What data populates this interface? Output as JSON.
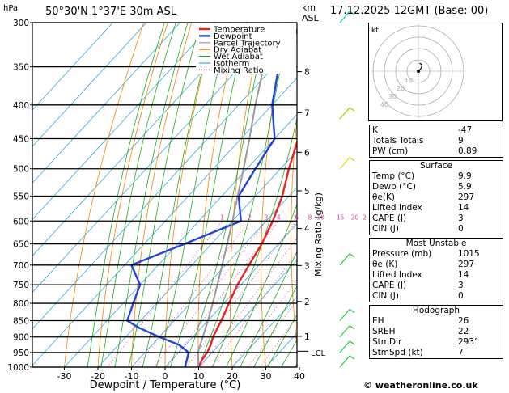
{
  "chart_data": {
    "type": "line",
    "title": "50°30'N  1°37'E  30m  ASL",
    "date": "17.12.2025  12GMT  (Base: 00)",
    "xlabel": "Dewpoint / Temperature (°C)",
    "ylabel": "hPa",
    "km_label": "km\nASL",
    "km_title": "km",
    "asl_title": "ASL",
    "mixing_axis_label": "Mixing Ratio (g/kg)",
    "xlim": [
      -40,
      40
    ],
    "ylim": [
      1000,
      300
    ],
    "x_ticks": [
      -30,
      -20,
      -10,
      0,
      10,
      20,
      30,
      40
    ],
    "pressure_levels": [
      300,
      350,
      400,
      450,
      500,
      550,
      600,
      650,
      700,
      750,
      800,
      850,
      900,
      950,
      1000
    ],
    "km_ticks": [
      {
        "km": "1",
        "p": 898
      },
      {
        "km": "2",
        "p": 795
      },
      {
        "km": "3",
        "p": 701
      },
      {
        "km": "4",
        "p": 616
      },
      {
        "km": "5",
        "p": 540
      },
      {
        "km": "6",
        "p": 472
      },
      {
        "km": "7",
        "p": 411
      },
      {
        "km": "8",
        "p": 356
      }
    ],
    "lcl_label": "LCL",
    "lcl_p": 946,
    "mixing_ratio_labels": [
      "1",
      "2",
      "3",
      "4",
      "6",
      "8",
      "10",
      "15",
      "20",
      "25"
    ],
    "mixing_ratio_values": [
      1,
      2,
      3,
      4,
      6,
      8,
      10,
      15,
      20,
      25
    ],
    "legend": [
      {
        "name": "Temperature",
        "color": "#ee2222",
        "style": "solid"
      },
      {
        "name": "Dewpoint",
        "color": "#2244dd",
        "style": "solid"
      },
      {
        "name": "Parcel Trajectory",
        "color": "#999999",
        "style": "solid"
      },
      {
        "name": "Dry Adiabat",
        "color": "#ee8800",
        "style": "solid"
      },
      {
        "name": "Wet Adiabat",
        "color": "#22aa22",
        "style": "solid"
      },
      {
        "name": "Isotherm",
        "color": "#33aadd",
        "style": "solid"
      },
      {
        "name": "Mixing Ratio",
        "color": "#dd44aa",
        "style": "dotted"
      }
    ],
    "series": [
      {
        "name": "Temperature",
        "color": "#ee2222",
        "points": [
          [
            1000,
            9.9
          ],
          [
            975,
            9.0
          ],
          [
            950,
            8.5
          ],
          [
            925,
            7.5
          ],
          [
            900,
            6.0
          ],
          [
            850,
            4.0
          ],
          [
            800,
            1.5
          ],
          [
            750,
            -1.0
          ],
          [
            700,
            -3.0
          ],
          [
            650,
            -5.0
          ],
          [
            600,
            -8.0
          ],
          [
            550,
            -12.0
          ],
          [
            500,
            -17.5
          ],
          [
            450,
            -23.0
          ],
          [
            400,
            -30.0
          ],
          [
            350,
            -38.5
          ],
          [
            300,
            -47.5
          ]
        ]
      },
      {
        "name": "Dewpoint",
        "color": "#2244dd",
        "points": [
          [
            1000,
            5.9
          ],
          [
            975,
            4.5
          ],
          [
            950,
            3.0
          ],
          [
            925,
            -2.0
          ],
          [
            900,
            -10.0
          ],
          [
            870,
            -19.0
          ],
          [
            850,
            -24.0
          ],
          [
            800,
            -27.0
          ],
          [
            750,
            -30.0
          ],
          [
            700,
            -38.0
          ],
          [
            650,
            -28.0
          ],
          [
            600,
            -17.5
          ],
          [
            550,
            -25.0
          ],
          [
            500,
            -27.5
          ],
          [
            450,
            -30.0
          ],
          [
            400,
            -40.0
          ],
          [
            350,
            -48.5
          ],
          [
            300,
            -54.0
          ]
        ]
      },
      {
        "name": "Parcel Trajectory",
        "color": "#999999",
        "points": [
          [
            1000,
            9.9
          ],
          [
            946,
            5.5
          ],
          [
            900,
            3.0
          ],
          [
            850,
            0.0
          ],
          [
            800,
            -3.3
          ],
          [
            750,
            -7.0
          ],
          [
            700,
            -11.0
          ],
          [
            650,
            -15.3
          ],
          [
            600,
            -20.0
          ],
          [
            550,
            -25.3
          ],
          [
            500,
            -31.0
          ],
          [
            450,
            -37.5
          ],
          [
            400,
            -45.0
          ],
          [
            350,
            -53.0
          ],
          [
            300,
            -62.0
          ]
        ]
      }
    ],
    "wind_barbs": [
      {
        "p": 300,
        "color": "#11cccc"
      },
      {
        "p": 420,
        "color": "#aacc00"
      },
      {
        "p": 500,
        "color": "#dddd00"
      },
      {
        "p": 700,
        "color": "#22cc44"
      },
      {
        "p": 850,
        "color": "#22cc44"
      },
      {
        "p": 900,
        "color": "#22cc44"
      },
      {
        "p": 950,
        "color": "#22cc44"
      },
      {
        "p": 1000,
        "color": "#22cc44"
      }
    ]
  },
  "hodograph": {
    "label": "kt",
    "rings": [
      "10",
      "20",
      "30",
      "40"
    ],
    "trace": [
      [
        0,
        0
      ],
      [
        2,
        2
      ],
      [
        3,
        4
      ],
      [
        3,
        6
      ],
      [
        1,
        7
      ]
    ]
  },
  "indices": {
    "general": [
      {
        "label": "K",
        "value": "-47"
      },
      {
        "label": "Totals Totals",
        "value": "9"
      },
      {
        "label": "PW (cm)",
        "value": "0.89"
      }
    ],
    "surface_title": "Surface",
    "surface": [
      {
        "label": "Temp (°C)",
        "value": "9.9"
      },
      {
        "label": "Dewp (°C)",
        "value": "5.9"
      },
      {
        "label": "θe(K)",
        "value": "297"
      },
      {
        "label": "Lifted Index",
        "value": "14"
      },
      {
        "label": "CAPE (J)",
        "value": "3"
      },
      {
        "label": "CIN (J)",
        "value": "0"
      }
    ],
    "unstable_title": "Most Unstable",
    "unstable": [
      {
        "label": "Pressure (mb)",
        "value": "1015"
      },
      {
        "label": "θe (K)",
        "value": "297"
      },
      {
        "label": "Lifted Index",
        "value": "14"
      },
      {
        "label": "CAPE (J)",
        "value": "3"
      },
      {
        "label": "CIN (J)",
        "value": "0"
      }
    ],
    "hodo_title": "Hodograph",
    "hodo": [
      {
        "label": "EH",
        "value": "26"
      },
      {
        "label": "SREH",
        "value": "22"
      },
      {
        "label": "StmDir",
        "value": "293°"
      },
      {
        "label": "StmSpd (kt)",
        "value": "7"
      }
    ]
  },
  "copyright": "© weatheronline.co.uk"
}
